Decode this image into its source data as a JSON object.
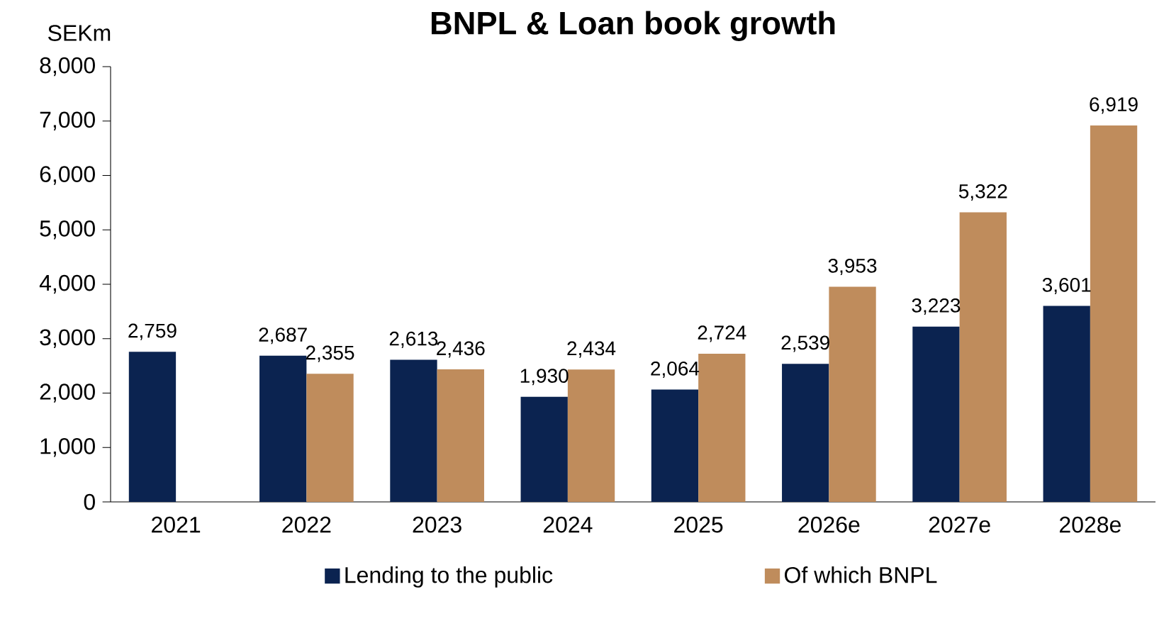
{
  "chart_data": {
    "type": "bar",
    "title": "BNPL & Loan book growth",
    "ylabel": "SEKm",
    "categories": [
      "2021",
      "2022",
      "2023",
      "2024",
      "2025",
      "2026e",
      "2027e",
      "2028e"
    ],
    "series": [
      {
        "name": "Lending to the public",
        "color": "#0b2350",
        "values": [
          2759,
          2687,
          2613,
          1930,
          2064,
          2539,
          3223,
          3601
        ],
        "value_labels": [
          "2,759",
          "2,687",
          "2,613",
          "1,930",
          "2,064",
          "2,539",
          "3,223",
          "3,601"
        ]
      },
      {
        "name": "Of which BNPL",
        "color": "#bf8c5c",
        "values": [
          null,
          2355,
          2436,
          2434,
          2724,
          3953,
          5322,
          6919
        ],
        "value_labels": [
          null,
          "2,355",
          "2,436",
          "2,434",
          "2,724",
          "3,953",
          "5,322",
          "6,919"
        ]
      }
    ],
    "ylim": [
      0,
      8000
    ],
    "yticks": [
      0,
      {
        "value": 1000,
        "label": "1,000"
      },
      {
        "value": 2000,
        "label": "2,000"
      },
      {
        "value": 3000,
        "label": "3,000"
      },
      {
        "value": 4000,
        "label": "4,000"
      },
      {
        "value": 5000,
        "label": "5,000"
      },
      {
        "value": 6000,
        "label": "6,000"
      },
      {
        "value": 7000,
        "label": "7,000"
      },
      {
        "value": 8000,
        "label": "8,000"
      }
    ],
    "grid": false,
    "legend": "bottom"
  }
}
